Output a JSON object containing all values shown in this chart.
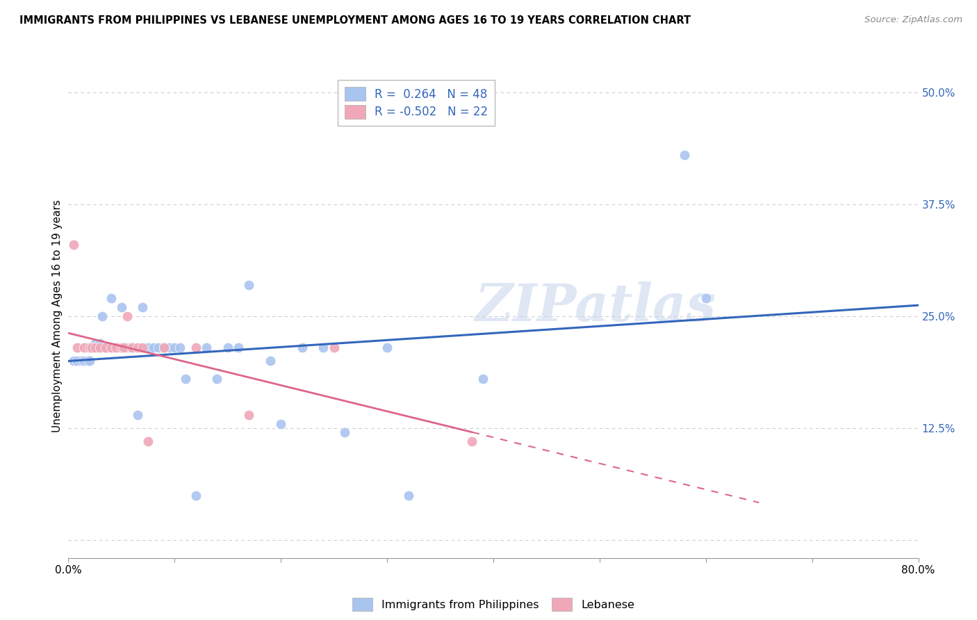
{
  "title": "IMMIGRANTS FROM PHILIPPINES VS LEBANESE UNEMPLOYMENT AMONG AGES 16 TO 19 YEARS CORRELATION CHART",
  "source": "Source: ZipAtlas.com",
  "ylabel": "Unemployment Among Ages 16 to 19 years",
  "xlim": [
    0.0,
    0.8
  ],
  "ylim": [
    -0.02,
    0.52
  ],
  "yticks": [
    0.0,
    0.125,
    0.25,
    0.375,
    0.5
  ],
  "ytick_labels": [
    "",
    "12.5%",
    "25.0%",
    "37.5%",
    "50.0%"
  ],
  "xticks": [
    0.0,
    0.1,
    0.2,
    0.3,
    0.4,
    0.5,
    0.6,
    0.7,
    0.8
  ],
  "xtick_labels": [
    "0.0%",
    "",
    "",
    "",
    "",
    "",
    "",
    "",
    "80.0%"
  ],
  "r_philippines": 0.264,
  "n_philippines": 48,
  "r_lebanese": -0.502,
  "n_lebanese": 22,
  "color_philippines": "#aac4f0",
  "color_lebanese": "#f0a8b8",
  "line_color_philippines": "#3366bb",
  "line_color_lebanese": "#dd6688",
  "background_color": "#ffffff",
  "grid_color": "#cccccc",
  "watermark": "ZIPatlas",
  "philippines_x": [
    0.005,
    0.008,
    0.012,
    0.015,
    0.015,
    0.018,
    0.018,
    0.02,
    0.02,
    0.025,
    0.025,
    0.028,
    0.03,
    0.032,
    0.035,
    0.04,
    0.04,
    0.045,
    0.048,
    0.05,
    0.055,
    0.06,
    0.065,
    0.07,
    0.075,
    0.08,
    0.085,
    0.09,
    0.095,
    0.1,
    0.105,
    0.11,
    0.12,
    0.13,
    0.14,
    0.15,
    0.16,
    0.17,
    0.19,
    0.2,
    0.22,
    0.24,
    0.26,
    0.3,
    0.32,
    0.39,
    0.58,
    0.6
  ],
  "philippines_y": [
    0.2,
    0.2,
    0.2,
    0.2,
    0.2,
    0.2,
    0.215,
    0.2,
    0.215,
    0.215,
    0.22,
    0.215,
    0.22,
    0.25,
    0.215,
    0.27,
    0.215,
    0.215,
    0.215,
    0.26,
    0.215,
    0.215,
    0.14,
    0.26,
    0.215,
    0.215,
    0.215,
    0.215,
    0.215,
    0.215,
    0.215,
    0.18,
    0.05,
    0.215,
    0.18,
    0.215,
    0.215,
    0.285,
    0.2,
    0.13,
    0.215,
    0.215,
    0.12,
    0.215,
    0.05,
    0.18,
    0.43,
    0.27
  ],
  "lebanese_x": [
    0.005,
    0.008,
    0.015,
    0.02,
    0.022,
    0.025,
    0.03,
    0.035,
    0.04,
    0.045,
    0.05,
    0.052,
    0.055,
    0.06,
    0.065,
    0.07,
    0.075,
    0.09,
    0.12,
    0.17,
    0.25,
    0.38
  ],
  "lebanese_y": [
    0.33,
    0.215,
    0.215,
    0.215,
    0.215,
    0.215,
    0.215,
    0.215,
    0.215,
    0.215,
    0.215,
    0.215,
    0.25,
    0.215,
    0.215,
    0.215,
    0.11,
    0.215,
    0.215,
    0.14,
    0.215,
    0.11
  ]
}
